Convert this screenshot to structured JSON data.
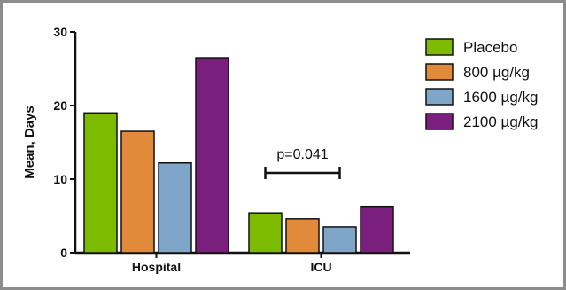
{
  "chart_data": {
    "type": "bar",
    "categories": [
      "Hospital",
      "ICU"
    ],
    "series": [
      {
        "name": "Placebo",
        "values": [
          19.0,
          5.4
        ],
        "color": "#7dbb00"
      },
      {
        "name": "800 µg/kg",
        "values": [
          16.5,
          4.6
        ],
        "color": "#e08a3a"
      },
      {
        "name": "1600 µg/kg",
        "values": [
          12.2,
          3.5
        ],
        "color": "#7fa5c9"
      },
      {
        "name": "2100 µg/kg",
        "values": [
          26.5,
          6.3
        ],
        "color": "#7a1f7e"
      }
    ],
    "ylabel": "Mean, Days",
    "ylim": [
      0,
      30
    ],
    "yticks": [
      "0",
      "10",
      "20",
      "30"
    ],
    "annotation": {
      "text": "p=0.041",
      "category": "ICU",
      "from_series": 0,
      "to_series": 2
    },
    "legend": "right",
    "grid": false
  }
}
